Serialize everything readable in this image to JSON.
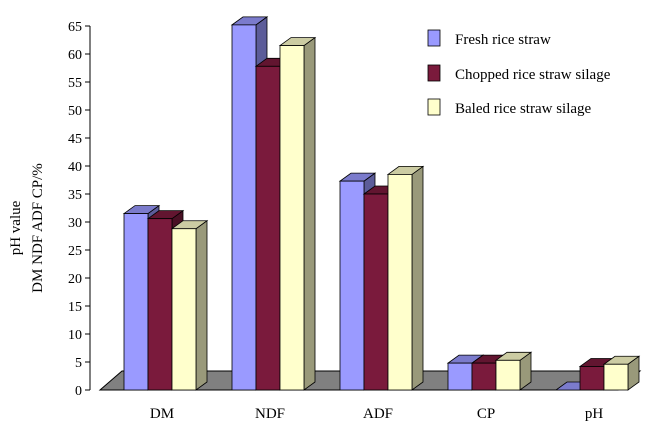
{
  "chart_data": {
    "type": "bar",
    "title": "",
    "xlabel": "",
    "ylabel": [
      "pH value",
      "DM NDF ADF CP/%"
    ],
    "categories": [
      "DM",
      "NDF",
      "ADF",
      "CP",
      "pH"
    ],
    "series": [
      {
        "name": "Fresh rice straw",
        "values": [
          31.5,
          65.2,
          37.3,
          4.8,
          0
        ],
        "color": "#9a9aff"
      },
      {
        "name": "Chopped rice straw silage",
        "values": [
          30.6,
          57.8,
          35.0,
          4.8,
          4.2
        ],
        "color": "#7a1a3c"
      },
      {
        "name": "Baled rice straw silage",
        "values": [
          28.8,
          61.5,
          38.5,
          5.3,
          4.6
        ],
        "color": "#ffffcc"
      }
    ],
    "ylim": [
      0,
      65
    ],
    "yticks": [
      "0",
      "5",
      "10",
      "15",
      "20",
      "25",
      "30",
      "35",
      "40",
      "45",
      "50",
      "55",
      "60",
      "65"
    ],
    "grid": false,
    "legend": "top-right",
    "style": "3d-clustered-column"
  }
}
